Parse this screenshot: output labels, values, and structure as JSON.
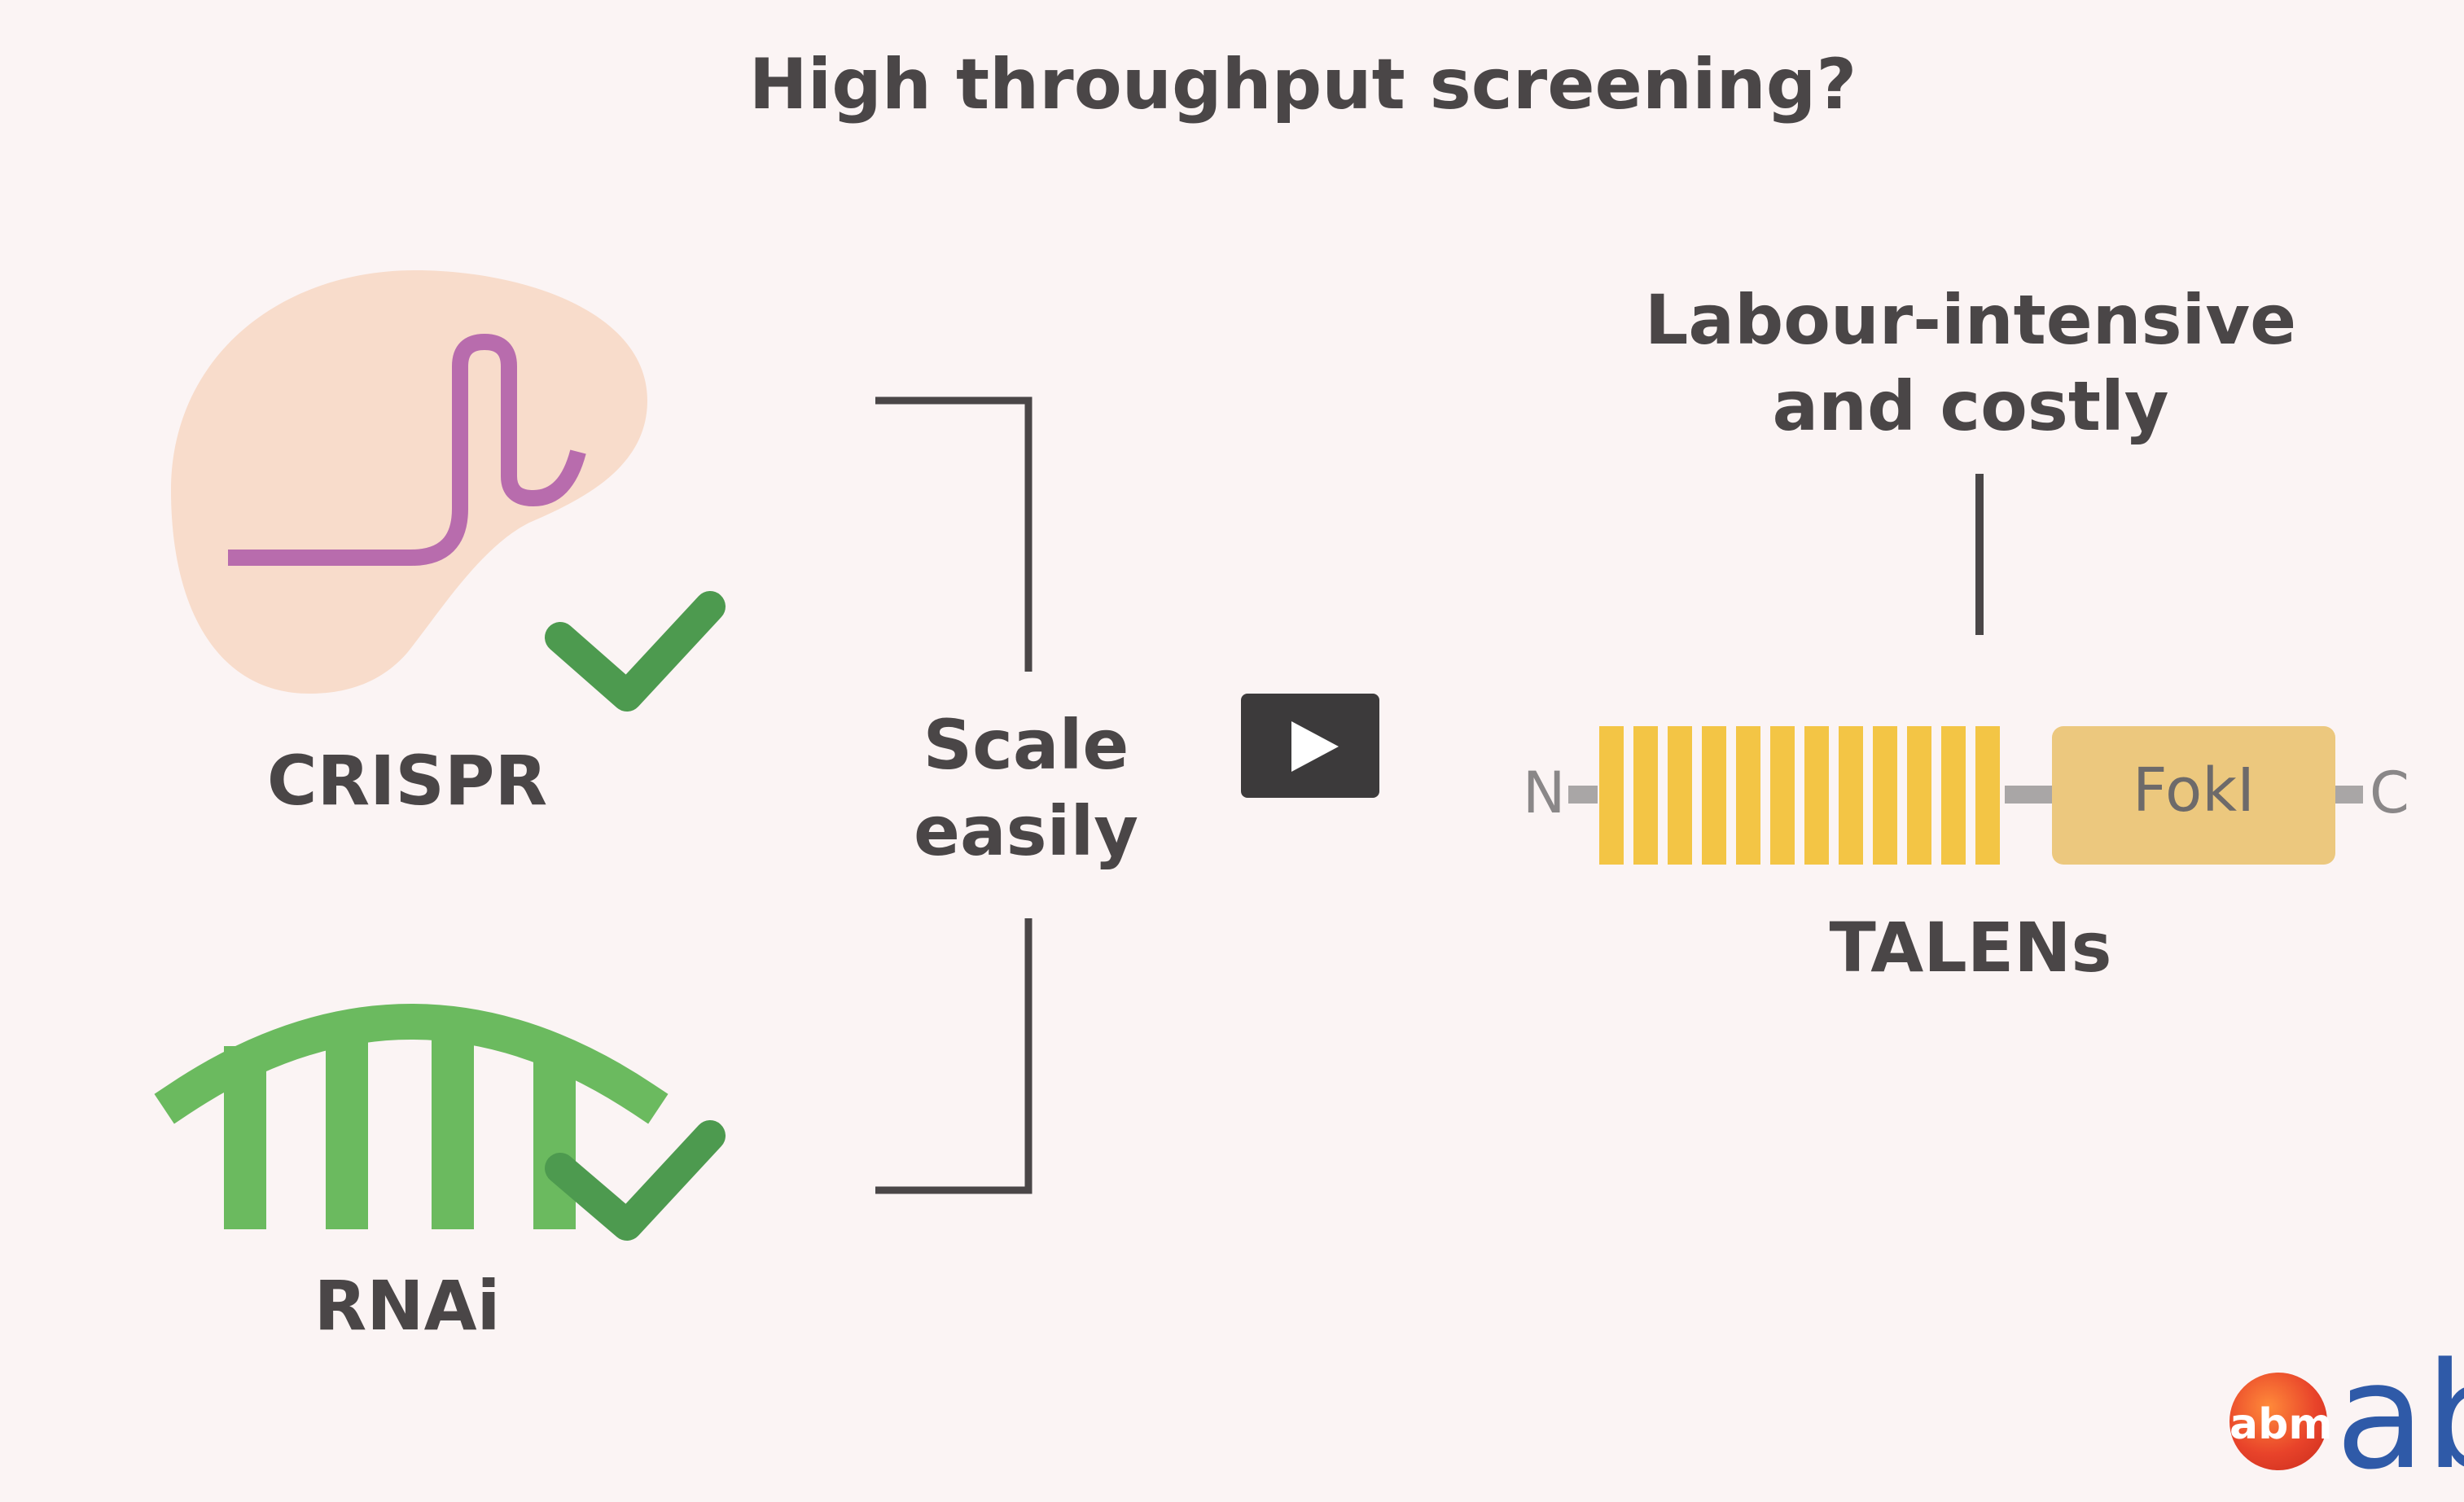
{
  "slide": {
    "title": "High throughput screening?",
    "crispr_label": "CRISPR",
    "rnai_label": "RNAi",
    "scale_line1": "Scale",
    "scale_line2": "easily",
    "labour_line1": "Labour-intensive",
    "labour_line2": "and costly",
    "talens_label": "TALENs",
    "fokl_label": "FokI",
    "n_terminus": "N",
    "c_terminus": "C"
  },
  "player": {
    "play_icon": "play-icon"
  },
  "branding": {
    "logo_text": "abm",
    "brand_text": "ab"
  },
  "colors": {
    "background": "#fbf4f4",
    "text": "#4a4647",
    "crispr_blob": "#f8dccb",
    "guide_rna": "#b86cad",
    "check_green": "#4d9a4f",
    "rnai_green": "#6bba5f",
    "tale_repeat": "#f3c545",
    "fokl_box": "#ecc87e",
    "linker_gray": "#a9a6a6",
    "bracket": "#4a4647",
    "play_bg": "#3c3a3b"
  }
}
